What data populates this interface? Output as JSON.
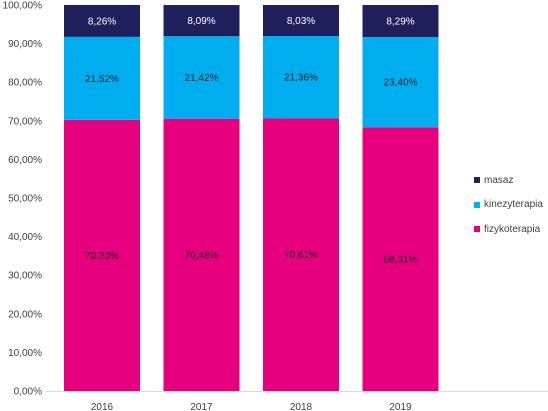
{
  "chart_data": {
    "type": "bar",
    "stacked": true,
    "categories": [
      "2016",
      "2017",
      "2018",
      "2019"
    ],
    "series": [
      {
        "name": "fizykoterapia",
        "values": [
          70.23,
          70.48,
          70.61,
          68.31
        ],
        "labels": [
          "70,23%",
          "70,48%",
          "70,61%",
          "68,31%"
        ],
        "color": "#E6007E",
        "label_color": "#222222"
      },
      {
        "name": "kinezyterapia",
        "values": [
          21.52,
          21.42,
          21.36,
          23.4
        ],
        "labels": [
          "21,52%",
          "21,42%",
          "21,36%",
          "23,40%"
        ],
        "color": "#00AEEF",
        "label_color": "#222222"
      },
      {
        "name": "masaz",
        "values": [
          8.26,
          8.09,
          8.03,
          8.29
        ],
        "labels": [
          "8,26%",
          "8,09%",
          "8,03%",
          "8,29%"
        ],
        "color": "#1F1F5C",
        "label_color": "#FFFFFF"
      }
    ],
    "ylim": [
      0,
      100
    ],
    "yticks": [
      "0,00%",
      "10,00%",
      "20,00%",
      "30,00%",
      "40,00%",
      "50,00%",
      "60,00%",
      "70,00%",
      "80,00%",
      "90,00%",
      "100,00%"
    ],
    "legend_position": "right",
    "legend_order": [
      "masaz",
      "kinezyterapia",
      "fizykoterapia"
    ],
    "grid": false
  }
}
